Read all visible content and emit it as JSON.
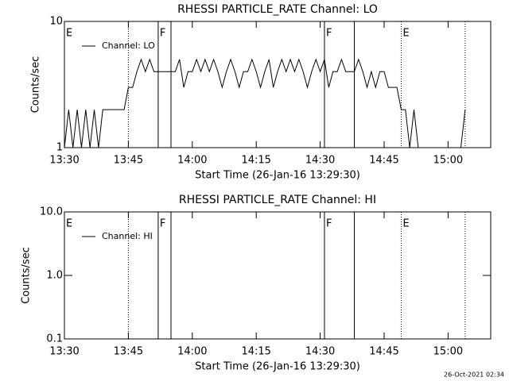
{
  "chart_data": [
    {
      "type": "line",
      "title": "RHESSI PARTICLE_RATE Channel: LO",
      "x_label": "Start Time (26-Jan-16 13:29:30)",
      "y_label": "Counts/sec",
      "log_y": true,
      "ylim": [
        1,
        10
      ],
      "yticks": [
        1,
        10
      ],
      "xlim": [
        "13:30",
        "15:10"
      ],
      "xticks": [
        "13:30",
        "13:45",
        "14:00",
        "14:15",
        "14:30",
        "14:45",
        "15:00"
      ],
      "legend": "upper left",
      "vlines": [
        {
          "x": "13:45",
          "style": "dotted"
        },
        {
          "x": "13:52",
          "style": "solid"
        },
        {
          "x": "13:55",
          "style": "solid"
        },
        {
          "x": "14:31",
          "style": "solid"
        },
        {
          "x": "14:38",
          "style": "solid"
        },
        {
          "x": "14:49",
          "style": "dotted"
        },
        {
          "x": "15:04",
          "style": "dotted"
        }
      ],
      "annotations": [
        {
          "x": "13:30",
          "text": "E"
        },
        {
          "x": "13:52",
          "text": "F"
        },
        {
          "x": "14:31",
          "text": "F"
        },
        {
          "x": "14:49",
          "text": "E"
        }
      ],
      "x": [
        "13:30",
        "13:31",
        "13:32",
        "13:33",
        "13:34",
        "13:35",
        "13:36",
        "13:37",
        "13:38",
        "13:39",
        "13:40",
        "13:41",
        "13:42",
        "13:43",
        "13:44",
        "13:45",
        "13:46",
        "13:47",
        "13:48",
        "13:49",
        "13:50",
        "13:51",
        "13:52",
        "13:53",
        "13:54",
        "13:55",
        "13:56",
        "13:57",
        "13:58",
        "13:59",
        "14:00",
        "14:01",
        "14:02",
        "14:03",
        "14:04",
        "14:05",
        "14:06",
        "14:07",
        "14:08",
        "14:09",
        "14:10",
        "14:11",
        "14:12",
        "14:13",
        "14:14",
        "14:15",
        "14:16",
        "14:17",
        "14:18",
        "14:19",
        "14:20",
        "14:21",
        "14:22",
        "14:23",
        "14:24",
        "14:25",
        "14:26",
        "14:27",
        "14:28",
        "14:29",
        "14:30",
        "14:31",
        "14:32",
        "14:33",
        "14:34",
        "14:35",
        "14:36",
        "14:37",
        "14:38",
        "14:39",
        "14:40",
        "14:41",
        "14:42",
        "14:43",
        "14:44",
        "14:45",
        "14:46",
        "14:47",
        "14:48",
        "14:49",
        "14:50",
        "14:51",
        "14:52",
        "14:53",
        "14:54",
        "14:55",
        "14:56",
        "14:57",
        "14:58",
        "14:59",
        "15:00",
        "15:01",
        "15:02",
        "15:03",
        "15:04"
      ],
      "series": [
        {
          "name": "Channel: LO",
          "color": "#000000",
          "values": [
            1,
            2,
            1,
            2,
            1,
            2,
            1,
            2,
            1,
            2,
            2,
            2,
            2,
            2,
            2,
            3,
            3,
            4,
            5,
            4,
            5,
            4,
            4,
            4,
            4,
            4,
            4,
            5,
            3,
            4,
            4,
            5,
            4,
            5,
            4,
            5,
            4,
            3,
            4,
            5,
            4,
            3,
            4,
            4,
            5,
            4,
            3,
            4,
            5,
            3,
            4,
            5,
            4,
            5,
            4,
            5,
            4,
            3,
            4,
            5,
            4,
            5,
            3,
            4,
            4,
            5,
            4,
            4,
            4,
            5,
            4,
            3,
            4,
            3,
            4,
            4,
            3,
            3,
            3,
            2,
            2,
            1,
            2,
            1,
            null,
            null,
            null,
            null,
            null,
            null,
            null,
            null,
            null,
            1,
            2
          ]
        }
      ]
    },
    {
      "type": "line",
      "title": "RHESSI PARTICLE_RATE Channel: HI",
      "x_label": "Start Time (26-Jan-16 13:29:30)",
      "y_label": "Counts/sec",
      "log_y": true,
      "ylim": [
        0.1,
        10
      ],
      "yticks": [
        {
          "value": 0.1,
          "label": "0.1"
        },
        {
          "value": 1,
          "label": "1.0"
        },
        {
          "value": 10,
          "label": "10.0"
        }
      ],
      "xlim": [
        "13:30",
        "15:10"
      ],
      "xticks": [
        "13:30",
        "13:45",
        "14:00",
        "14:15",
        "14:30",
        "14:45",
        "15:00"
      ],
      "legend": "upper left",
      "vlines": [
        {
          "x": "13:45",
          "style": "dotted"
        },
        {
          "x": "13:52",
          "style": "solid"
        },
        {
          "x": "13:55",
          "style": "solid"
        },
        {
          "x": "14:31",
          "style": "solid"
        },
        {
          "x": "14:38",
          "style": "solid"
        },
        {
          "x": "14:49",
          "style": "dotted"
        },
        {
          "x": "15:04",
          "style": "dotted"
        }
      ],
      "annotations": [
        {
          "x": "13:30",
          "text": "E"
        },
        {
          "x": "13:52",
          "text": "F"
        },
        {
          "x": "14:31",
          "text": "F"
        },
        {
          "x": "14:49",
          "text": "E"
        }
      ],
      "x": [],
      "series": [
        {
          "name": "Channel: HI",
          "color": "#000000",
          "values": []
        }
      ]
    }
  ],
  "footer": "26-Oct-2021 02:34"
}
